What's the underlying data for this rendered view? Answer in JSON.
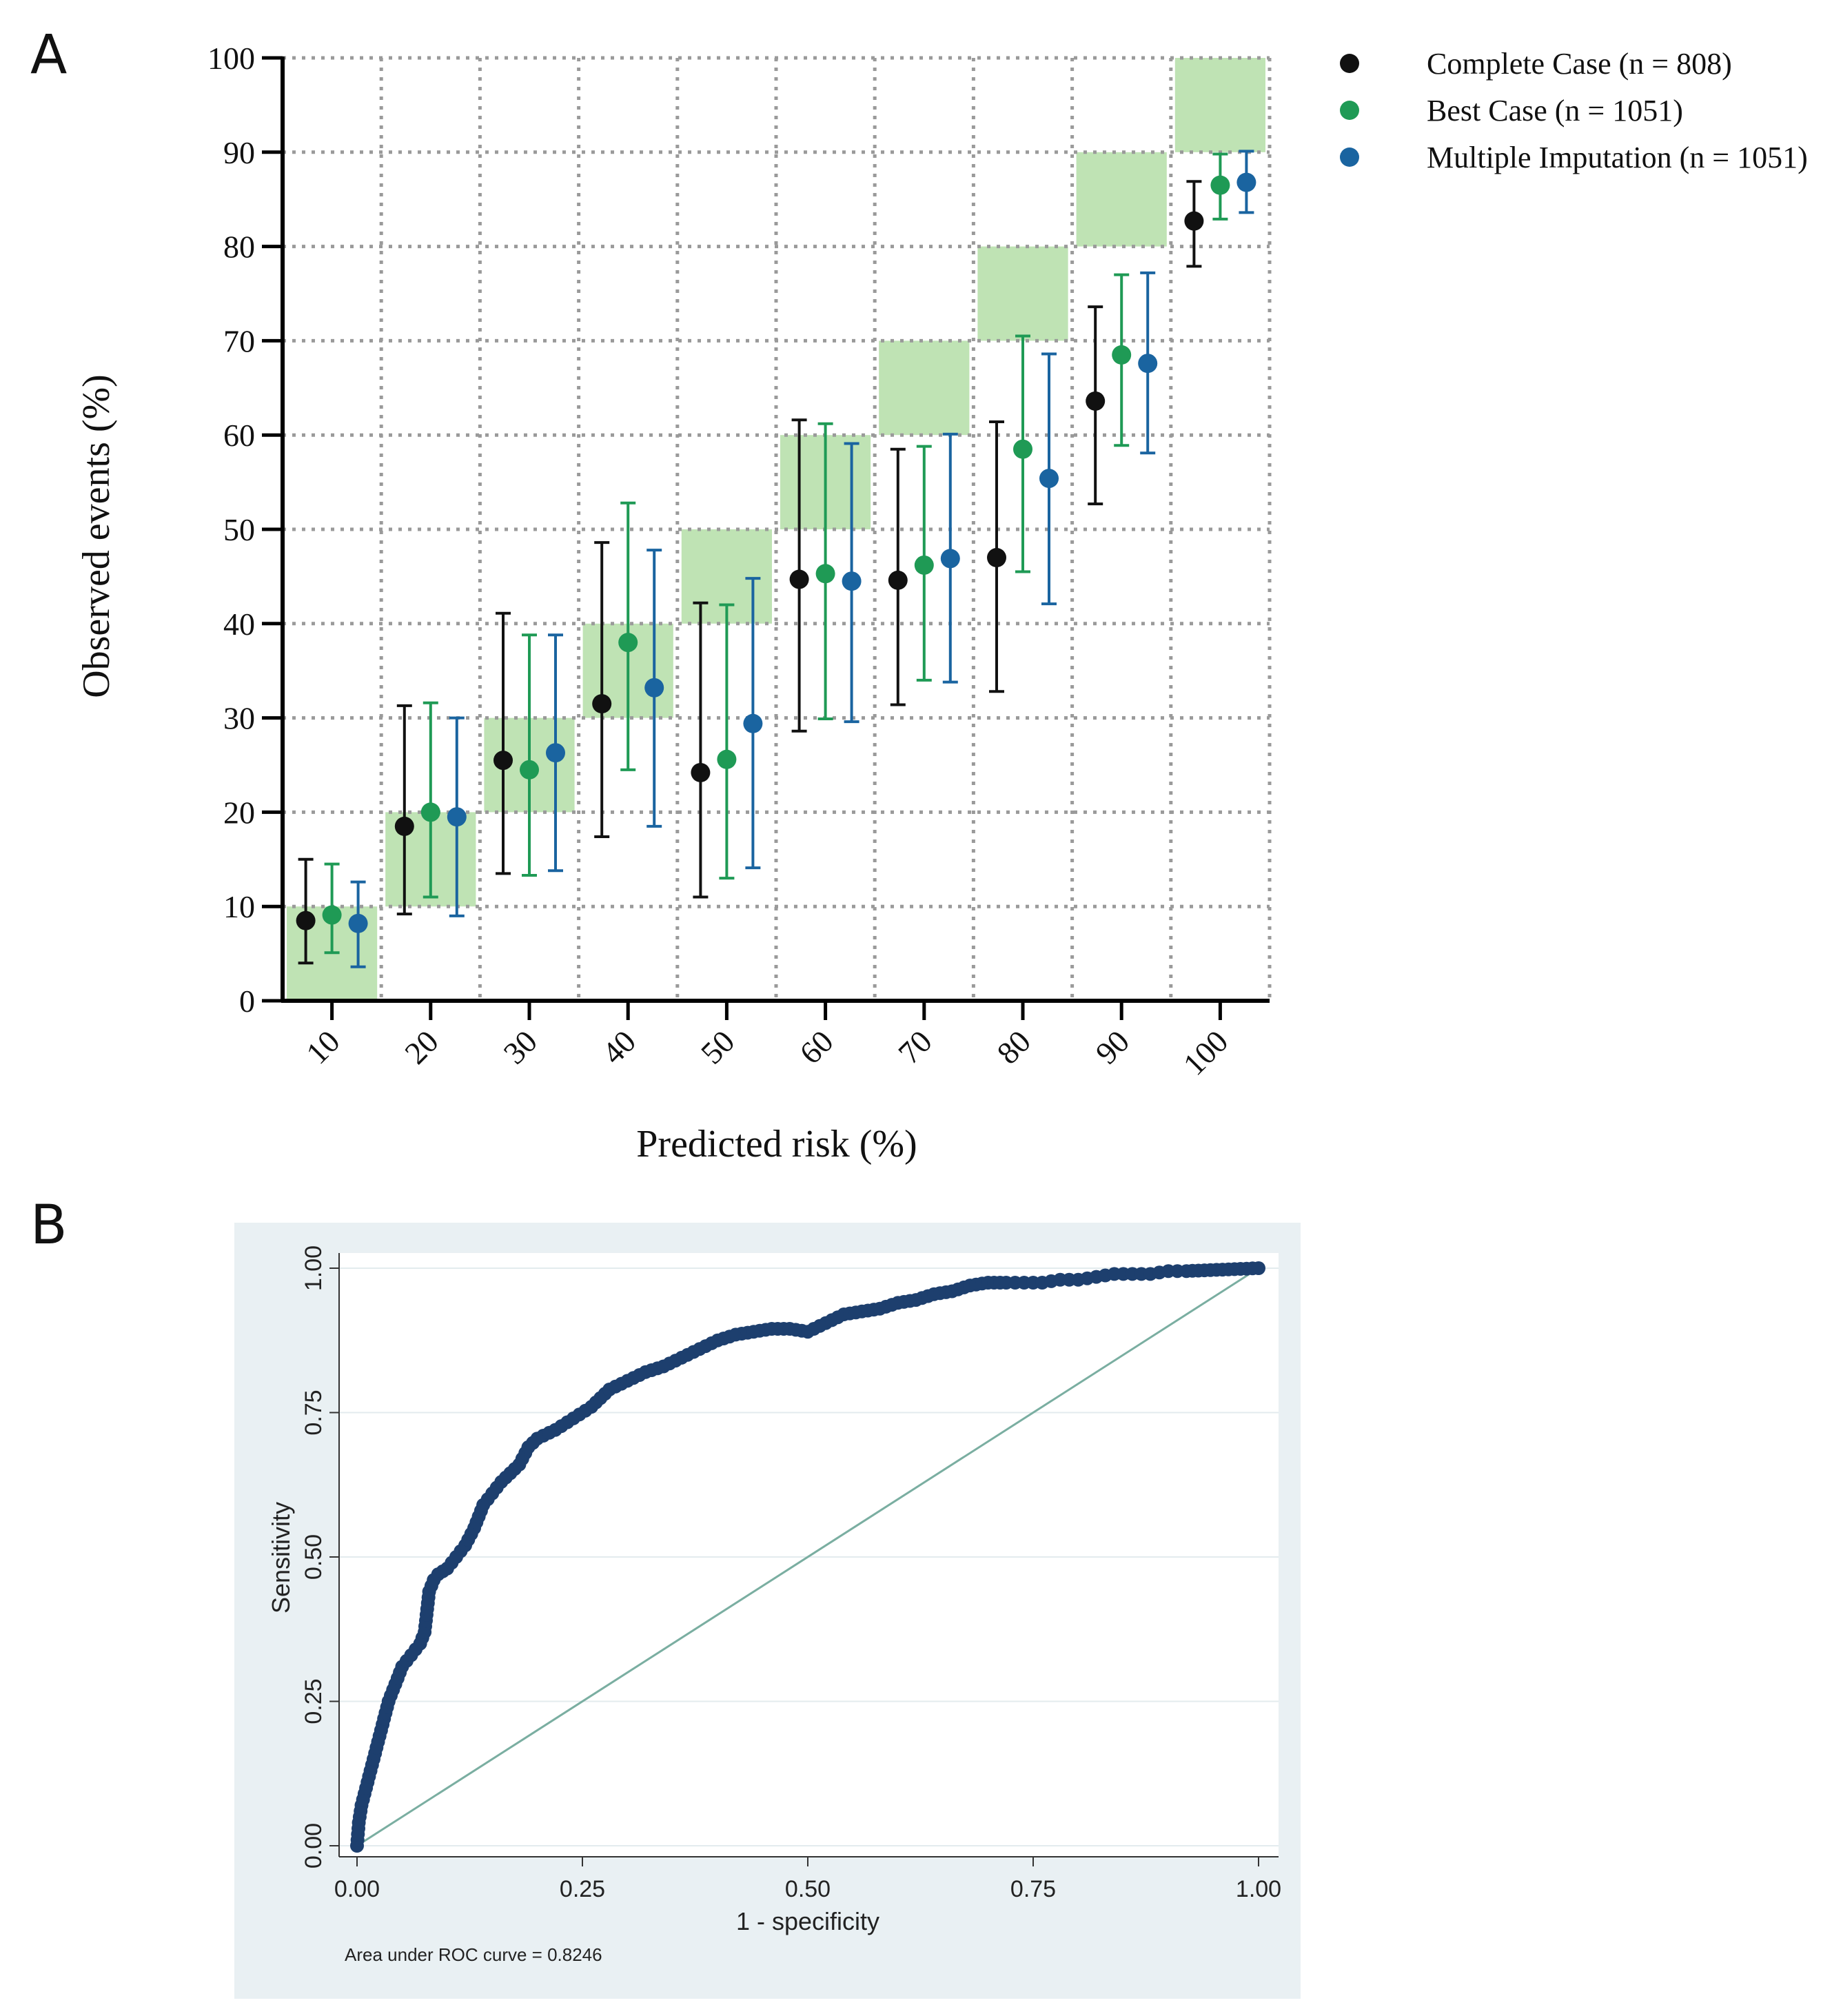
{
  "figure": {
    "panel_a_label": "A",
    "panel_b_label": "B"
  },
  "colors": {
    "complete": "#111111",
    "best": "#1f9a55",
    "imputation": "#1a64a0",
    "green_box": "#bfe3b4",
    "roc_curve": "#1d3f6e",
    "roc_diag": "#7aaea1",
    "roc_bg": "#e9f0f3"
  },
  "chart_data": [
    {
      "id": "calibration",
      "type": "scatter",
      "subtype": "calibration-errorbar",
      "xlabel": "Predicted risk (%)",
      "ylabel": "Observed  events (%)",
      "ylim": [
        0,
        100
      ],
      "yticks": [
        "0",
        "10",
        "20",
        "30",
        "40",
        "50",
        "60",
        "70",
        "80",
        "90",
        "100"
      ],
      "categories": [
        "10",
        "20",
        "30",
        "40",
        "50",
        "60",
        "70",
        "80",
        "90",
        "100"
      ],
      "grid": true,
      "reference_boxes": [
        [
          0,
          10
        ],
        [
          10,
          20
        ],
        [
          20,
          30
        ],
        [
          30,
          40
        ],
        [
          40,
          50
        ],
        [
          50,
          60
        ],
        [
          60,
          70
        ],
        [
          70,
          80
        ],
        [
          80,
          90
        ],
        [
          90,
          100
        ]
      ],
      "legend_position": "top-right",
      "series": [
        {
          "name": "Complete Case (n = 808)",
          "color_key": "complete",
          "values": [
            8.5,
            18.5,
            25.5,
            31.5,
            24.2,
            44.7,
            44.6,
            47.0,
            63.6,
            82.7
          ],
          "lower": [
            4.0,
            9.2,
            13.5,
            17.4,
            11.0,
            28.6,
            31.4,
            32.8,
            52.7,
            77.9
          ],
          "upper": [
            15.0,
            31.3,
            41.1,
            48.6,
            42.2,
            61.6,
            58.5,
            61.4,
            73.6,
            86.9
          ]
        },
        {
          "name": "Best Case (n = 1051)",
          "color_key": "best",
          "values": [
            9.1,
            20.0,
            24.5,
            38.0,
            25.6,
            45.3,
            46.2,
            58.5,
            68.5,
            86.5
          ],
          "lower": [
            5.1,
            11.0,
            13.3,
            24.5,
            13.0,
            29.9,
            34.0,
            45.5,
            58.9,
            82.9
          ],
          "upper": [
            14.5,
            31.6,
            38.8,
            52.8,
            42.0,
            61.2,
            58.8,
            70.5,
            77.0,
            89.8
          ]
        },
        {
          "name": "Multiple Imputation (n = 1051)",
          "color_key": "imputation",
          "values": [
            8.2,
            19.5,
            26.3,
            33.2,
            29.4,
            44.5,
            46.9,
            55.4,
            67.6,
            86.8
          ],
          "lower": [
            3.6,
            9.0,
            13.8,
            18.5,
            14.1,
            29.6,
            33.8,
            42.1,
            58.1,
            83.6
          ],
          "upper": [
            12.6,
            30.0,
            38.8,
            47.8,
            44.8,
            59.1,
            60.1,
            68.6,
            77.2,
            90.1
          ]
        }
      ]
    },
    {
      "id": "roc",
      "type": "line",
      "subtype": "roc",
      "xlabel": "1 - specificity",
      "ylabel": "Sensitivity",
      "xlim": [
        0,
        1
      ],
      "ylim": [
        0,
        1
      ],
      "xticks": [
        "0.00",
        "0.25",
        "0.50",
        "0.75",
        "1.00"
      ],
      "yticks": [
        "0.00",
        "0.25",
        "0.50",
        "0.75",
        "1.00"
      ],
      "annotation": "Area under ROC curve = 0.8246",
      "curve": {
        "x": [
          0,
          0.002,
          0.005,
          0.01,
          0.015,
          0.02,
          0.025,
          0.03,
          0.035,
          0.04,
          0.045,
          0.05,
          0.055,
          0.06,
          0.065,
          0.07,
          0.075,
          0.08,
          0.085,
          0.09,
          0.1,
          0.11,
          0.12,
          0.13,
          0.14,
          0.15,
          0.16,
          0.17,
          0.18,
          0.19,
          0.2,
          0.22,
          0.24,
          0.26,
          0.28,
          0.3,
          0.32,
          0.34,
          0.36,
          0.38,
          0.4,
          0.42,
          0.44,
          0.46,
          0.48,
          0.5,
          0.52,
          0.54,
          0.56,
          0.58,
          0.6,
          0.62,
          0.64,
          0.66,
          0.68,
          0.7,
          0.72,
          0.74,
          0.76,
          0.78,
          0.8,
          0.82,
          0.84,
          0.86,
          0.88,
          0.9,
          0.92,
          1.0
        ],
        "y": [
          0,
          0.04,
          0.07,
          0.1,
          0.13,
          0.16,
          0.19,
          0.22,
          0.25,
          0.27,
          0.29,
          0.31,
          0.32,
          0.33,
          0.34,
          0.35,
          0.37,
          0.44,
          0.46,
          0.47,
          0.48,
          0.5,
          0.52,
          0.55,
          0.59,
          0.61,
          0.63,
          0.645,
          0.66,
          0.69,
          0.705,
          0.72,
          0.74,
          0.76,
          0.79,
          0.805,
          0.82,
          0.83,
          0.845,
          0.86,
          0.875,
          0.885,
          0.89,
          0.895,
          0.895,
          0.89,
          0.905,
          0.92,
          0.925,
          0.93,
          0.94,
          0.945,
          0.955,
          0.96,
          0.97,
          0.975,
          0.975,
          0.975,
          0.975,
          0.98,
          0.98,
          0.985,
          0.99,
          0.99,
          0.99,
          0.995,
          0.995,
          1.0
        ]
      },
      "reference_line": {
        "x": [
          0,
          1
        ],
        "y": [
          0,
          1
        ]
      }
    }
  ]
}
